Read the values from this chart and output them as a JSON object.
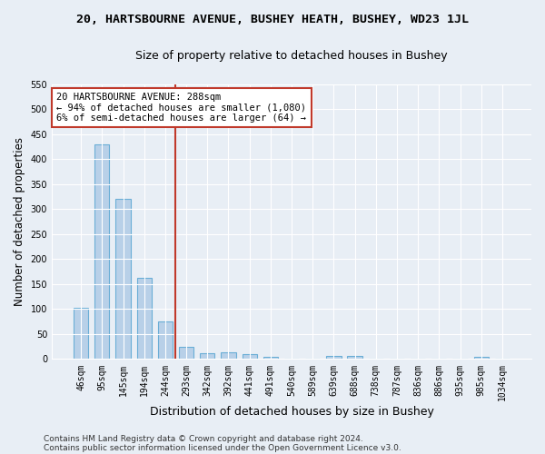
{
  "title_line1": "20, HARTSBOURNE AVENUE, BUSHEY HEATH, BUSHEY, WD23 1JL",
  "title_line2": "Size of property relative to detached houses in Bushey",
  "xlabel": "Distribution of detached houses by size in Bushey",
  "ylabel": "Number of detached properties",
  "categories": [
    "46sqm",
    "95sqm",
    "145sqm",
    "194sqm",
    "244sqm",
    "293sqm",
    "342sqm",
    "392sqm",
    "441sqm",
    "491sqm",
    "540sqm",
    "589sqm",
    "639sqm",
    "688sqm",
    "738sqm",
    "787sqm",
    "836sqm",
    "886sqm",
    "935sqm",
    "985sqm",
    "1034sqm"
  ],
  "values": [
    103,
    430,
    320,
    163,
    75,
    25,
    11,
    13,
    10,
    5,
    0,
    0,
    6,
    6,
    0,
    0,
    0,
    0,
    0,
    5,
    0
  ],
  "bar_color": "#b8d0e8",
  "bar_edge_color": "#6aaed6",
  "vline_x": 4.5,
  "vline_color": "#c0392b",
  "annotation_text": "20 HARTSBOURNE AVENUE: 288sqm\n← 94% of detached houses are smaller (1,080)\n6% of semi-detached houses are larger (64) →",
  "annotation_box_color": "#ffffff",
  "annotation_box_edge": "#c0392b",
  "ylim": [
    0,
    550
  ],
  "yticks": [
    0,
    50,
    100,
    150,
    200,
    250,
    300,
    350,
    400,
    450,
    500,
    550
  ],
  "bg_color": "#e8eef5",
  "plot_bg_color": "#e8eef5",
  "footer_line1": "Contains HM Land Registry data © Crown copyright and database right 2024.",
  "footer_line2": "Contains public sector information licensed under the Open Government Licence v3.0.",
  "title_fontsize": 9.5,
  "subtitle_fontsize": 9,
  "ylabel_fontsize": 8.5,
  "xlabel_fontsize": 9,
  "tick_fontsize": 7,
  "annotation_fontsize": 7.5,
  "footer_fontsize": 6.5,
  "bar_width": 0.7
}
